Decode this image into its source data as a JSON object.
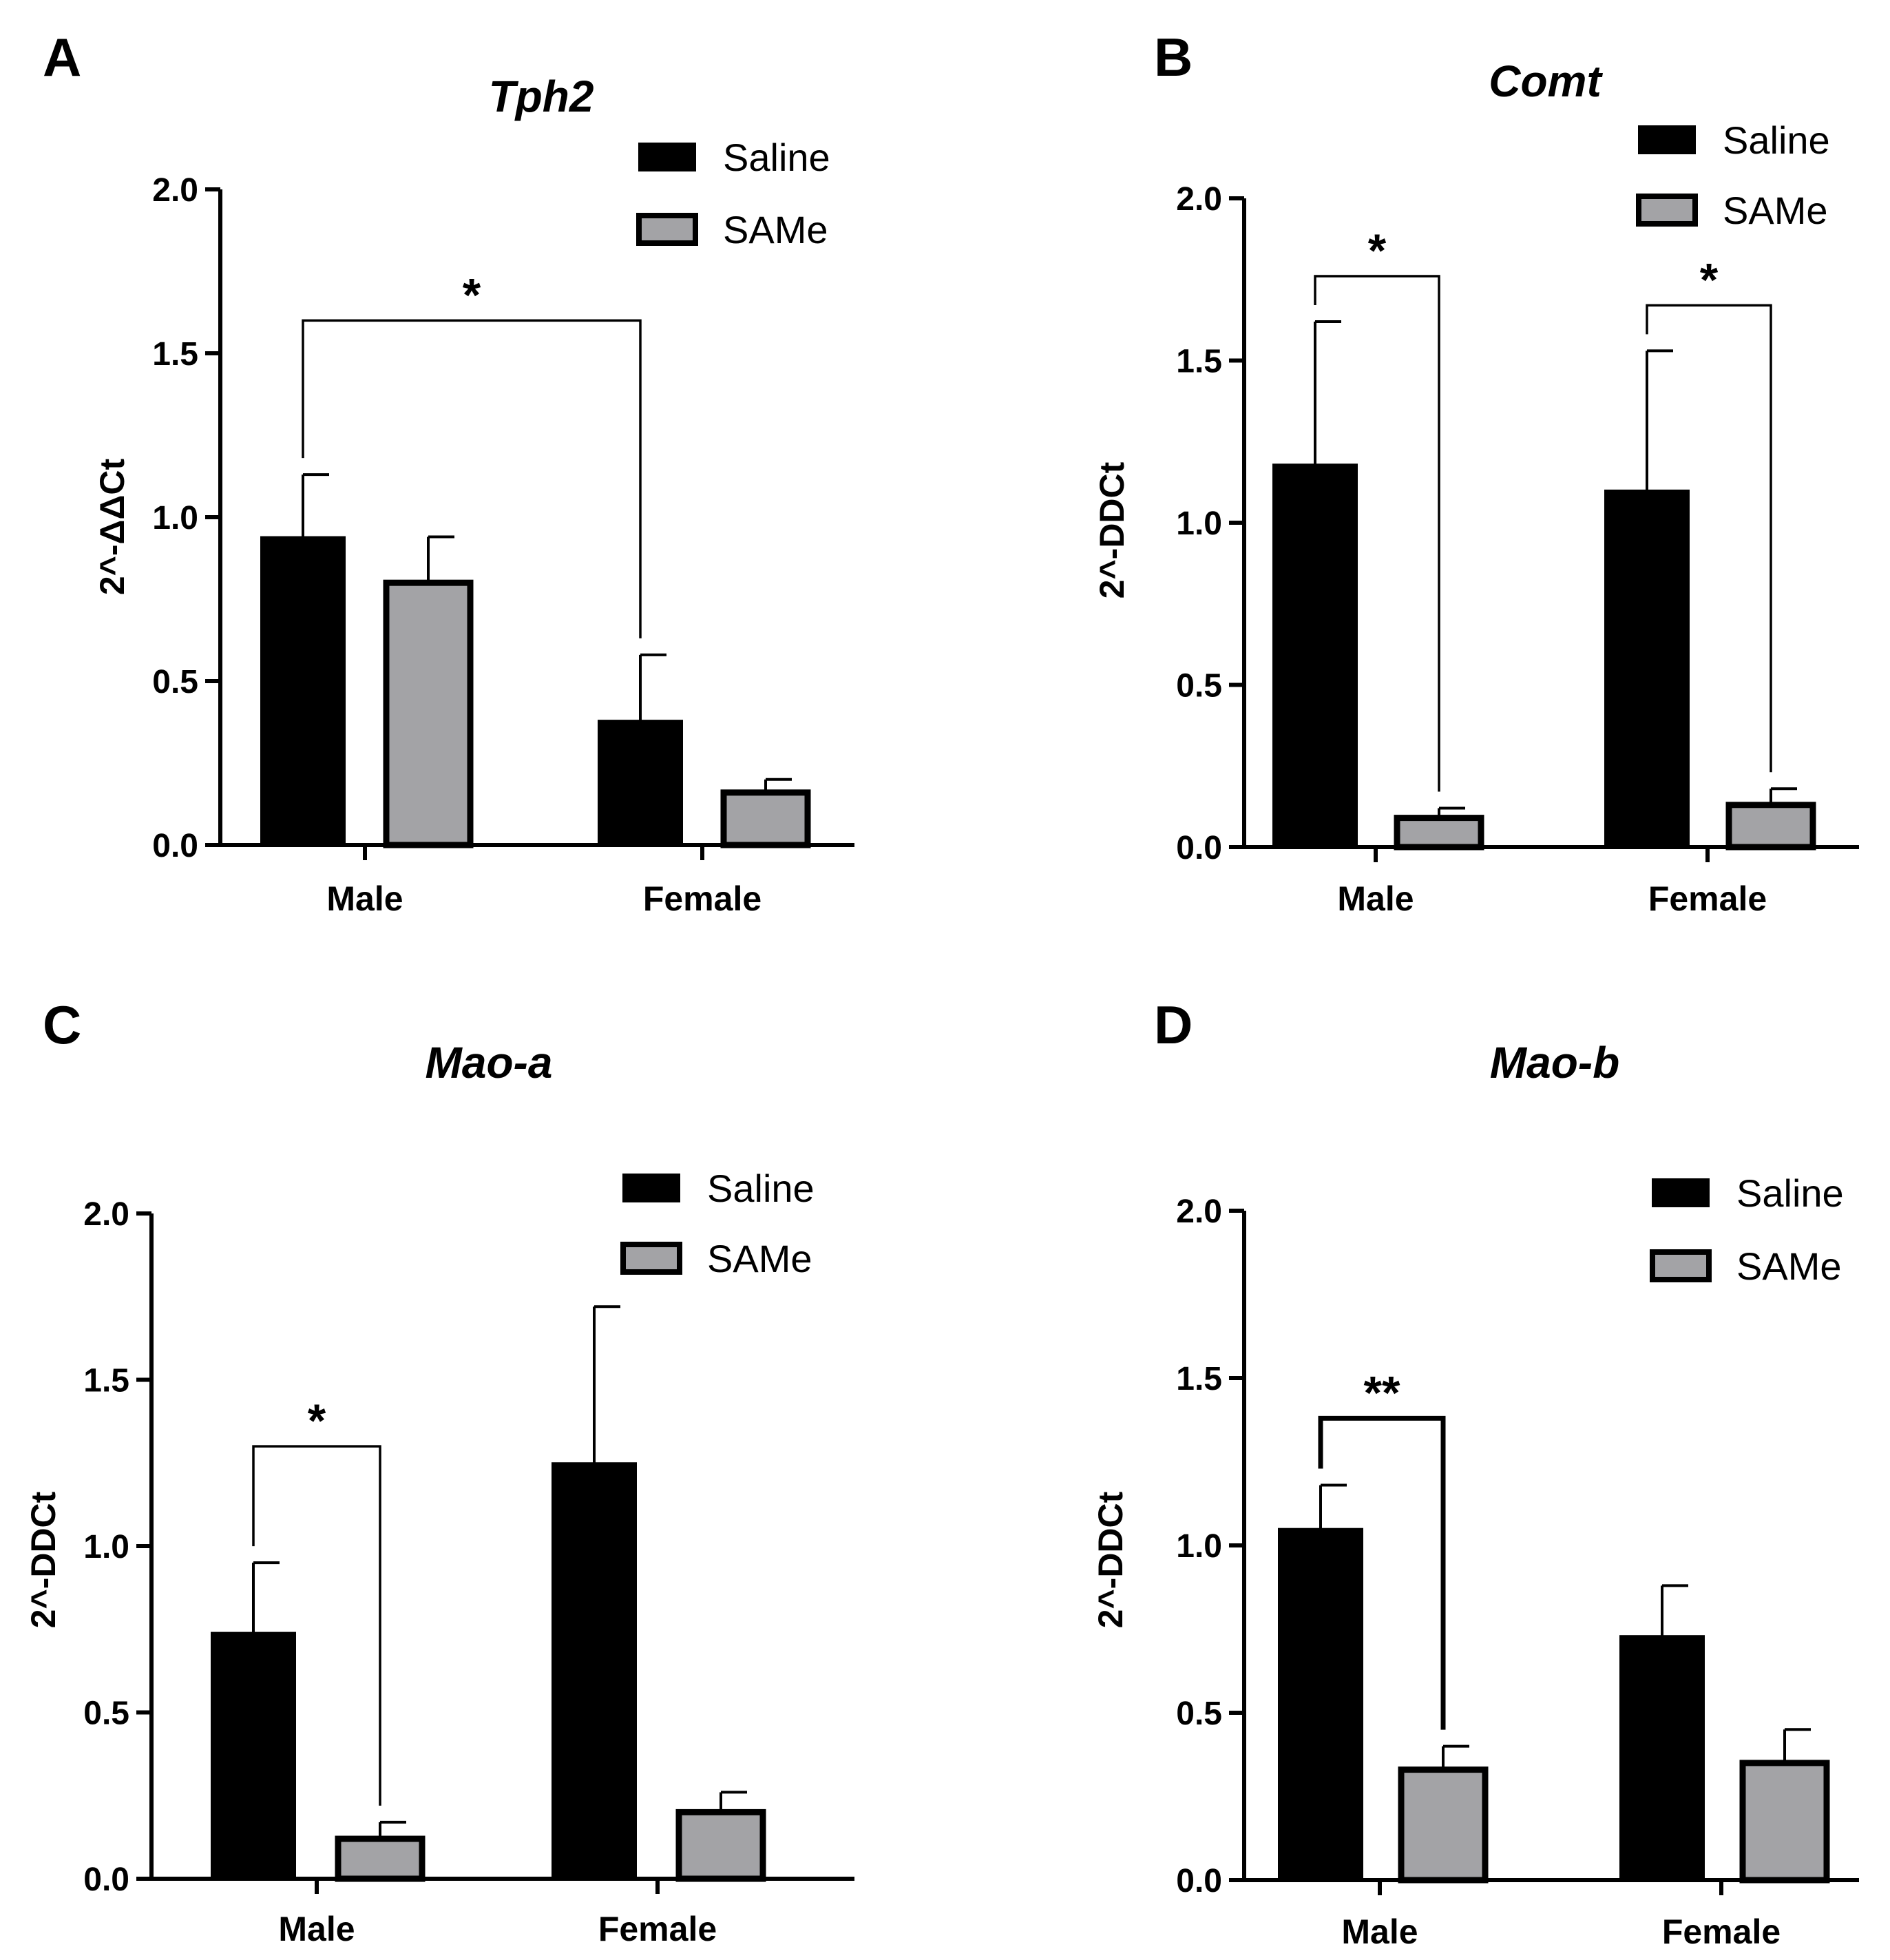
{
  "figure": {
    "colors": {
      "saline": "#000000",
      "same": "#a3a3a6",
      "axis": "#000000"
    }
  },
  "chart_data": [
    {
      "panel": "A",
      "type": "bar",
      "title": "Tph2",
      "ylabel": "2^-ΔΔCt",
      "xlabel": "",
      "categories": [
        "Male",
        "Female"
      ],
      "ylim": [
        0,
        2.0
      ],
      "yticks": [
        "0.0",
        "0.5",
        "1.0",
        "1.5",
        "2.0"
      ],
      "legend": {
        "position": "top-right",
        "entries": [
          "Saline",
          "SAMe"
        ]
      },
      "series": [
        {
          "name": "Saline",
          "values": [
            0.94,
            0.38
          ],
          "errors": [
            0.19,
            0.2
          ]
        },
        {
          "name": "SAMe",
          "values": [
            0.8,
            0.16
          ],
          "errors": [
            0.14,
            0.04
          ]
        }
      ],
      "annotations": [
        {
          "label": "*",
          "from": [
            0,
            "Saline"
          ],
          "to": [
            1,
            "Saline"
          ],
          "y": 1.6
        }
      ]
    },
    {
      "panel": "B",
      "type": "bar",
      "title": "Comt",
      "ylabel": "2^-DDCt",
      "xlabel": "",
      "categories": [
        "Male",
        "Female"
      ],
      "ylim": [
        0,
        2.0
      ],
      "yticks": [
        "0.0",
        "0.5",
        "1.0",
        "1.5",
        "2.0"
      ],
      "legend": {
        "position": "top-right",
        "entries": [
          "Saline",
          "SAMe"
        ]
      },
      "series": [
        {
          "name": "Saline",
          "values": [
            1.18,
            1.1
          ],
          "errors": [
            0.44,
            0.43
          ]
        },
        {
          "name": "SAMe",
          "values": [
            0.09,
            0.13
          ],
          "errors": [
            0.03,
            0.05
          ]
        }
      ],
      "annotations": [
        {
          "label": "*",
          "from": [
            0,
            "Saline"
          ],
          "to": [
            0,
            "SAMe"
          ],
          "y": 1.76
        },
        {
          "label": "*",
          "from": [
            1,
            "Saline"
          ],
          "to": [
            1,
            "SAMe"
          ],
          "y": 1.67
        }
      ]
    },
    {
      "panel": "C",
      "type": "bar",
      "title": "Mao-a",
      "ylabel": "2^-DDCt",
      "xlabel": "",
      "categories": [
        "Male",
        "Female"
      ],
      "ylim": [
        0,
        2.0
      ],
      "yticks": [
        "0.0",
        "0.5",
        "1.0",
        "1.5",
        "2.0"
      ],
      "legend": {
        "position": "top-right",
        "entries": [
          "Saline",
          "SAMe"
        ]
      },
      "series": [
        {
          "name": "Saline",
          "values": [
            0.74,
            1.25
          ],
          "errors": [
            0.21,
            0.47
          ]
        },
        {
          "name": "SAMe",
          "values": [
            0.12,
            0.2
          ],
          "errors": [
            0.05,
            0.06
          ]
        }
      ],
      "annotations": [
        {
          "label": "*",
          "from": [
            0,
            "Saline"
          ],
          "to": [
            0,
            "SAMe"
          ],
          "y": 1.3
        }
      ]
    },
    {
      "panel": "D",
      "type": "bar",
      "title": "Mao-b",
      "ylabel": "2^-DDCt",
      "xlabel": "",
      "categories": [
        "Male",
        "Female"
      ],
      "ylim": [
        0,
        2.0
      ],
      "yticks": [
        "0.0",
        "0.5",
        "1.0",
        "1.5",
        "2.0"
      ],
      "legend": {
        "position": "top-right",
        "entries": [
          "Saline",
          "SAMe"
        ]
      },
      "series": [
        {
          "name": "Saline",
          "values": [
            1.05,
            0.73
          ],
          "errors": [
            0.13,
            0.15
          ]
        },
        {
          "name": "SAMe",
          "values": [
            0.33,
            0.35
          ],
          "errors": [
            0.07,
            0.1
          ]
        }
      ],
      "annotations": [
        {
          "label": "**",
          "from": [
            0,
            "Saline"
          ],
          "to": [
            0,
            "SAMe"
          ],
          "y": 1.38
        }
      ]
    }
  ]
}
